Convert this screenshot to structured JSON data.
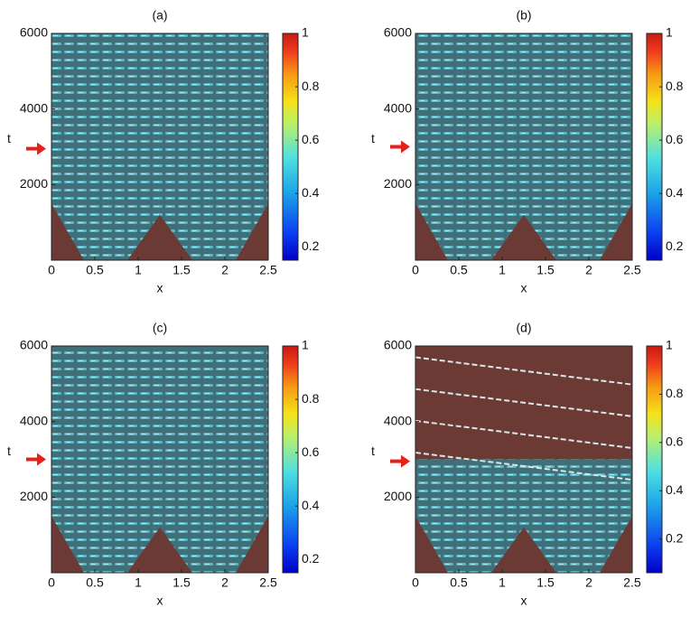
{
  "chart_data": [
    {
      "type": "heatmap",
      "title": "(a)",
      "xlabel": "x",
      "ylabel": "t",
      "xlim": [
        0,
        2.5
      ],
      "xticks": [
        0,
        0.5,
        1,
        1.5,
        2,
        2.5
      ],
      "ylim": [
        0,
        6000
      ],
      "yticks": [
        2000,
        4000,
        6000
      ],
      "clim": [
        0.15,
        1
      ],
      "cticks": [
        0.2,
        0.4,
        0.6,
        0.8,
        1
      ],
      "marker_t": 2950,
      "marker_color": "#e8201a"
    },
    {
      "type": "heatmap",
      "title": "(b)",
      "xlabel": "x",
      "ylabel": "t",
      "xlim": [
        0,
        2.5
      ],
      "xticks": [
        0,
        0.5,
        1,
        1.5,
        2,
        2.5
      ],
      "ylim": [
        0,
        6000
      ],
      "yticks": [
        2000,
        4000,
        6000
      ],
      "clim": [
        0.15,
        1
      ],
      "cticks": [
        0.2,
        0.4,
        0.6,
        0.8,
        1
      ],
      "marker_t": 3000,
      "marker_color": "#e8201a"
    },
    {
      "type": "heatmap",
      "title": "(c)",
      "xlabel": "x",
      "ylabel": "t",
      "xlim": [
        0,
        2.5
      ],
      "xticks": [
        0,
        0.5,
        1,
        1.5,
        2,
        2.5
      ],
      "ylim": [
        0,
        6000
      ],
      "yticks": [
        2000,
        4000,
        6000
      ],
      "clim": [
        0.15,
        1
      ],
      "cticks": [
        0.2,
        0.4,
        0.6,
        0.8,
        1
      ],
      "marker_t": 3000,
      "marker_color": "#e8201a"
    },
    {
      "type": "heatmap",
      "title": "(d)",
      "xlabel": "x",
      "ylabel": "t",
      "xlim": [
        0,
        2.5
      ],
      "xticks": [
        0,
        0.5,
        1,
        1.5,
        2,
        2.5
      ],
      "ylim": [
        0,
        6000
      ],
      "yticks": [
        2000,
        4000,
        6000
      ],
      "clim": [
        0.06,
        1
      ],
      "cticks": [
        0.2,
        0.4,
        0.6,
        0.8,
        1
      ],
      "marker_t": 2950,
      "marker_color": "#e8201a"
    }
  ]
}
